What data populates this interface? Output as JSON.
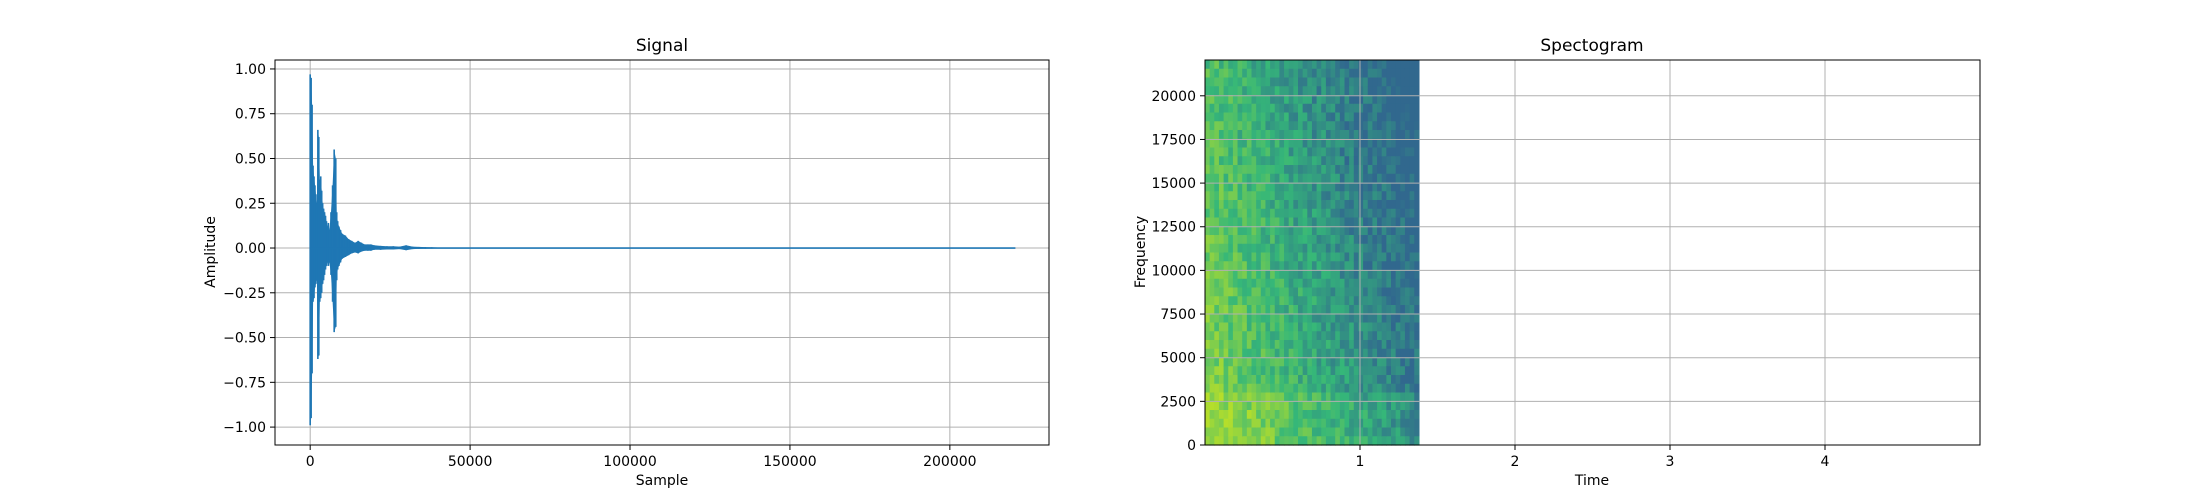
{
  "colors": {
    "signal_line": "#1f77b4",
    "grid": "#b0b0b0",
    "axes": "#000000",
    "viridis_low": "#31688e",
    "viridis_mid": "#35b779",
    "viridis_high": "#b5de2b"
  },
  "chart_data": [
    {
      "type": "line",
      "title": "Signal",
      "xlabel": "Sample",
      "ylabel": "Amplitude",
      "xlim": [
        -11000,
        231000
      ],
      "ylim": [
        -1.1,
        1.05
      ],
      "xticks": [
        0,
        50000,
        100000,
        150000,
        200000
      ],
      "xtick_labels": [
        "0",
        "50000",
        "100000",
        "150000",
        "200000"
      ],
      "yticks": [
        1.0,
        0.75,
        0.5,
        0.25,
        0.0,
        -0.25,
        -0.5,
        -0.75,
        -1.0
      ],
      "ytick_labels": [
        "1.00",
        "0.75",
        "0.50",
        "0.25",
        "0.00",
        "−0.25",
        "−0.50",
        "−0.75",
        "−1.00"
      ],
      "grid": true,
      "series": [
        {
          "x": [
            0,
            300,
            600,
            900,
            1200,
            1500,
            1800,
            2100,
            2400,
            2700,
            3000,
            3300,
            3600,
            3900,
            4200,
            4500,
            4800,
            5100,
            5400,
            5700,
            6000,
            6500,
            7000,
            7500,
            8000,
            8300,
            8600,
            9000,
            9500,
            10000,
            11000,
            12000,
            13000,
            14000,
            15000,
            16000,
            17000,
            18000,
            19000,
            20000,
            22000,
            24000,
            26000,
            28000,
            30000,
            32000,
            34000,
            36000,
            38000,
            40000,
            42000,
            60000,
            100000,
            150000,
            200000,
            220500
          ],
          "y_upper": [
            0.97,
            0.95,
            0.8,
            0.46,
            0.4,
            0.35,
            0.3,
            0.25,
            0.66,
            0.62,
            0.38,
            0.4,
            0.32,
            0.25,
            0.22,
            0.2,
            0.18,
            0.15,
            0.12,
            0.14,
            0.1,
            0.2,
            0.35,
            0.55,
            0.5,
            0.2,
            0.15,
            0.12,
            0.1,
            0.08,
            0.07,
            0.05,
            0.04,
            0.03,
            0.04,
            0.03,
            0.02,
            0.02,
            0.02,
            0.015,
            0.012,
            0.01,
            0.01,
            0.008,
            0.015,
            0.008,
            0.006,
            0.005,
            0.004,
            0.003,
            0.002,
            0.001,
            0.0,
            0.0,
            0.0,
            0.0
          ],
          "y_lower": [
            -0.99,
            -0.95,
            -0.7,
            -0.3,
            -0.28,
            -0.22,
            -0.2,
            -0.18,
            -0.62,
            -0.6,
            -0.3,
            -0.28,
            -0.25,
            -0.2,
            -0.18,
            -0.15,
            -0.12,
            -0.1,
            -0.08,
            -0.1,
            -0.08,
            -0.15,
            -0.3,
            -0.47,
            -0.44,
            -0.18,
            -0.12,
            -0.1,
            -0.08,
            -0.06,
            -0.05,
            -0.04,
            -0.03,
            -0.025,
            -0.03,
            -0.02,
            -0.015,
            -0.015,
            -0.015,
            -0.01,
            -0.01,
            -0.008,
            -0.008,
            -0.006,
            -0.012,
            -0.006,
            -0.005,
            -0.004,
            -0.003,
            -0.002,
            -0.002,
            -0.001,
            0.0,
            0.0,
            0.0,
            0.0
          ]
        }
      ]
    },
    {
      "type": "heatmap",
      "title": "Spectogram",
      "xlabel": "Time",
      "ylabel": "Frequency",
      "xlim": [
        0,
        5.0
      ],
      "ylim": [
        0,
        22050
      ],
      "xticks": [
        1,
        2,
        3,
        4
      ],
      "xtick_labels": [
        "1",
        "2",
        "3",
        "4"
      ],
      "yticks": [
        0,
        2500,
        5000,
        7500,
        10000,
        12500,
        15000,
        17500,
        20000
      ],
      "ytick_labels": [
        "0",
        "2500",
        "5000",
        "7500",
        "10000",
        "12500",
        "15000",
        "17500",
        "20000"
      ],
      "grid": true,
      "data_extent_time": [
        0,
        1.38
      ],
      "colormap": "viridis"
    }
  ]
}
